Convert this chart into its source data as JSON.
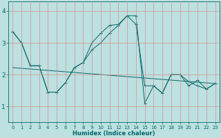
{
  "xlabel": "Humidex (Indice chaleur)",
  "xlim": [
    -0.5,
    23.5
  ],
  "ylim": [
    0.5,
    4.3
  ],
  "yticks": [
    1,
    2,
    3,
    4
  ],
  "xticks": [
    0,
    1,
    2,
    3,
    4,
    5,
    6,
    7,
    8,
    9,
    10,
    11,
    12,
    13,
    14,
    15,
    16,
    17,
    18,
    19,
    20,
    21,
    22,
    23
  ],
  "bg_color": "#bde0e0",
  "grid_color": "#d09090",
  "line_color": "#006868",
  "lines": [
    {
      "x": [
        0,
        1,
        2,
        3,
        4,
        5,
        6,
        7,
        8,
        9,
        10,
        11,
        12,
        13,
        14,
        15,
        16,
        17,
        18,
        19,
        20,
        21,
        22,
        23
      ],
      "y": [
        3.35,
        3.0,
        2.28,
        2.28,
        1.45,
        1.45,
        1.75,
        2.22,
        2.38,
        3.0,
        3.3,
        3.55,
        3.58,
        3.85,
        3.58,
        1.65,
        1.65,
        1.42,
        2.0,
        2.0,
        1.78,
        1.65,
        1.55,
        1.72
      ],
      "marker": true
    },
    {
      "x": [
        0,
        1,
        2,
        3,
        4,
        5,
        6,
        7,
        8,
        9,
        10,
        11,
        12,
        13,
        14,
        15,
        16,
        17,
        18,
        19,
        20,
        21,
        22,
        23
      ],
      "y": [
        3.35,
        3.0,
        2.28,
        2.28,
        1.45,
        1.45,
        1.75,
        2.22,
        2.38,
        2.78,
        3.0,
        3.3,
        3.55,
        3.85,
        3.85,
        1.1,
        1.65,
        1.42,
        2.0,
        2.0,
        1.65,
        1.82,
        1.55,
        1.72
      ],
      "marker": true
    },
    {
      "x": [
        0,
        23
      ],
      "y": [
        2.22,
        1.72
      ],
      "marker": false
    }
  ]
}
